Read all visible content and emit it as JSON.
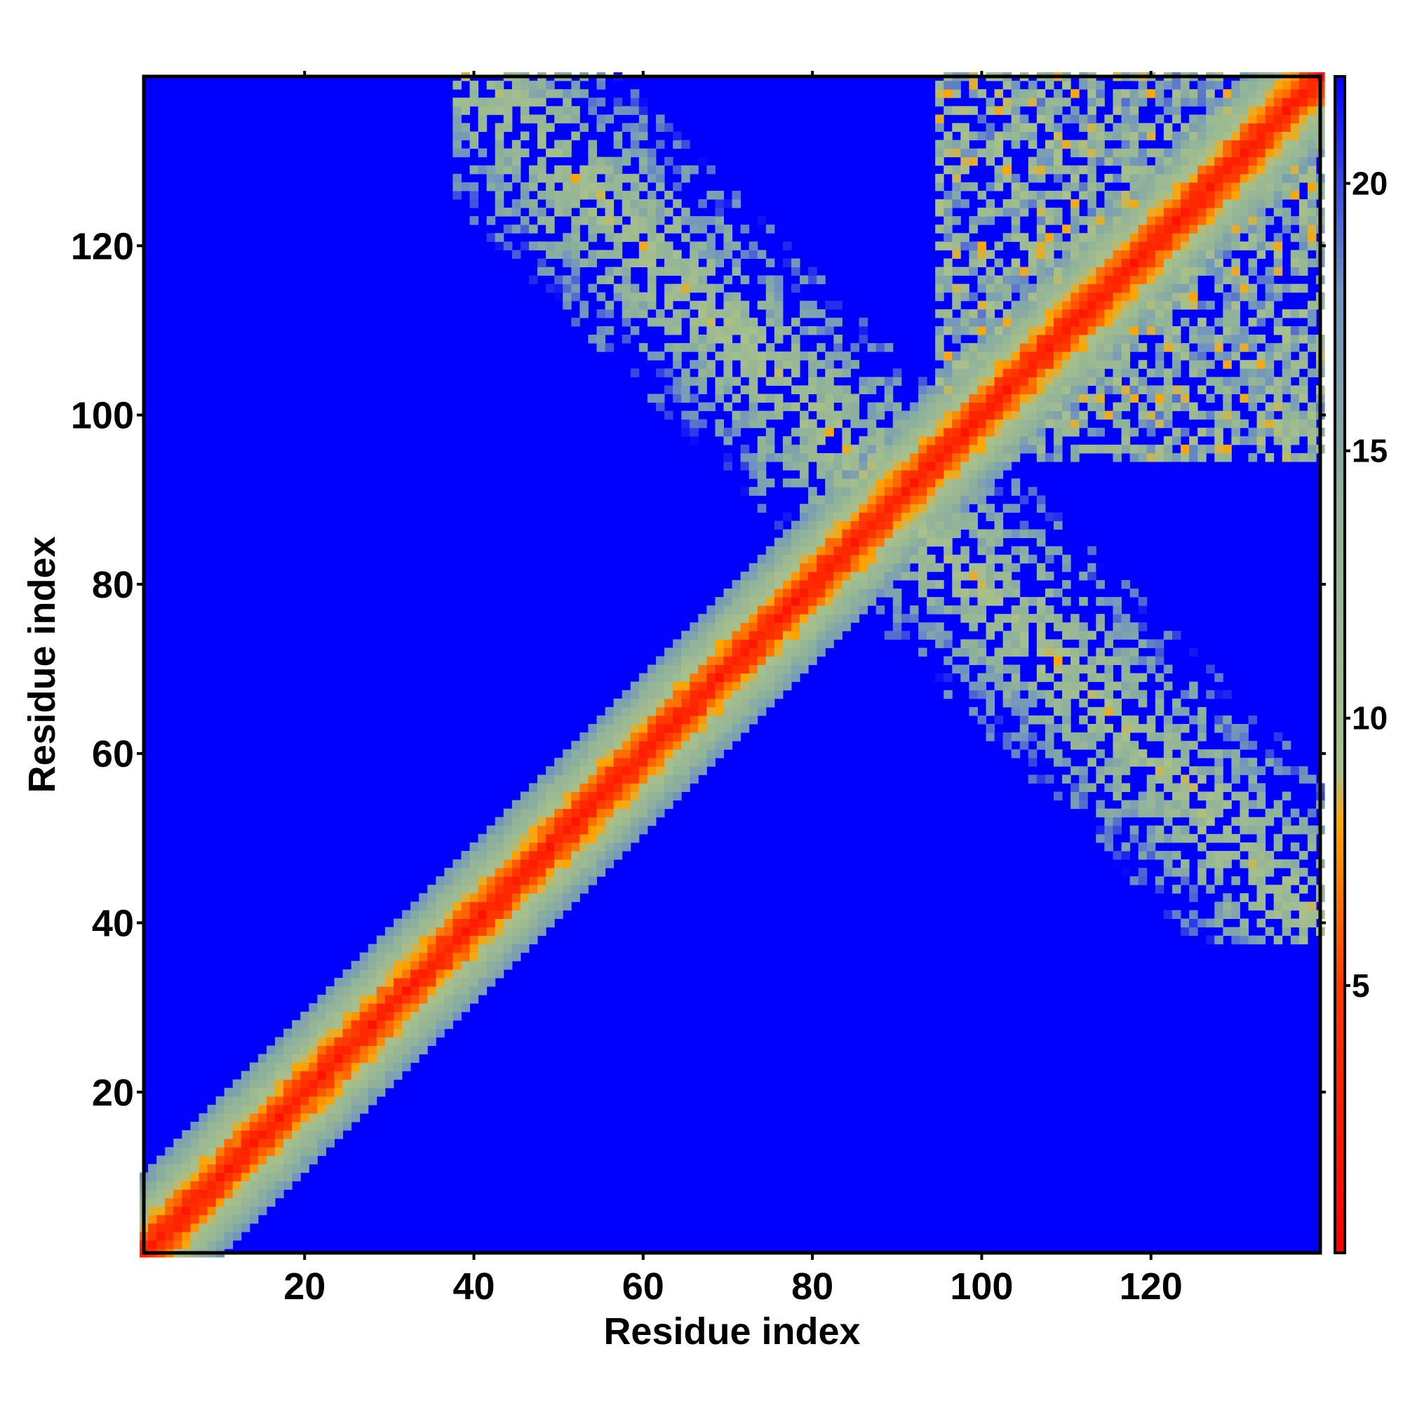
{
  "chart_data": {
    "type": "heatmap",
    "title": "",
    "xlabel": "Residue index",
    "ylabel": "Residue index",
    "x_range": [
      1,
      140
    ],
    "y_range": [
      1,
      140
    ],
    "x_ticks": [
      20,
      40,
      60,
      80,
      100,
      120
    ],
    "y_ticks": [
      20,
      40,
      60,
      80,
      100,
      120
    ],
    "colorbar": {
      "range": [
        0,
        22
      ],
      "ticks": [
        5,
        10,
        15,
        20
      ],
      "stops": [
        {
          "value": 0,
          "color": "#ff0000"
        },
        {
          "value": 5,
          "color": "#ff3a00"
        },
        {
          "value": 8,
          "color": "#ffa500"
        },
        {
          "value": 9,
          "color": "#a8c08a"
        },
        {
          "value": 14,
          "color": "#8fb29a"
        },
        {
          "value": 18,
          "color": "#6f93c0"
        },
        {
          "value": 22,
          "color": "#0000ff"
        }
      ],
      "cutoff_color": "#0000ff"
    },
    "features": {
      "diagonal_contacts": "residues i,i within ~4 residues below 10",
      "antidiagonal_band": {
        "from": [
          40,
          140
        ],
        "to": [
          140,
          40
        ],
        "description": "long-range contacts between residues ~40-75 and ~85-140"
      },
      "upper_right_cluster": {
        "x": [
          95,
          140
        ],
        "y": [
          95,
          140
        ]
      }
    },
    "grid": false,
    "legend": "colorbar-right"
  }
}
